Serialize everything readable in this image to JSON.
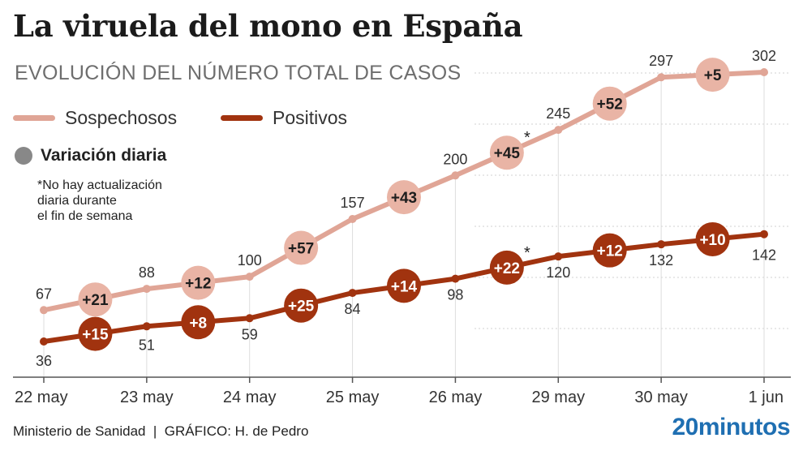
{
  "title": "La viruela del mono en España",
  "subtitle": "EVOLUCIÓN DEL NÚMERO TOTAL DE CASOS",
  "legend": {
    "daily_label": "Variación diaria",
    "note_lines": [
      "*No hay actualización",
      "diaria durante",
      "el fin de semana"
    ]
  },
  "footer": {
    "source": "Ministerio de Sanidad  |  GRÁFICO: H. de Pedro",
    "brand": "20minutos"
  },
  "chart_data": {
    "type": "line",
    "categories": [
      "22 may",
      "23 may",
      "24 may",
      "25 may",
      "26 may",
      "29 may",
      "30 may",
      "1 jun"
    ],
    "ylim": [
      0,
      340
    ],
    "grid": true,
    "legend_position": "top-left",
    "series": [
      {
        "name": "Sospechosos",
        "color": "#e0a596",
        "values": [
          67,
          88,
          100,
          157,
          200,
          245,
          297,
          302
        ],
        "daily_changes": [
          "+21",
          "+12",
          "+57",
          "+43",
          "+45",
          "+52",
          "+5"
        ],
        "starred_change_index": 4
      },
      {
        "name": "Positivos",
        "color": "#a1330f",
        "values": [
          36,
          51,
          59,
          84,
          98,
          120,
          132,
          142
        ],
        "daily_changes": [
          "+15",
          "+8",
          "+25",
          "+14",
          "+22",
          "+12",
          "+10"
        ],
        "starred_change_index": 4
      }
    ]
  }
}
